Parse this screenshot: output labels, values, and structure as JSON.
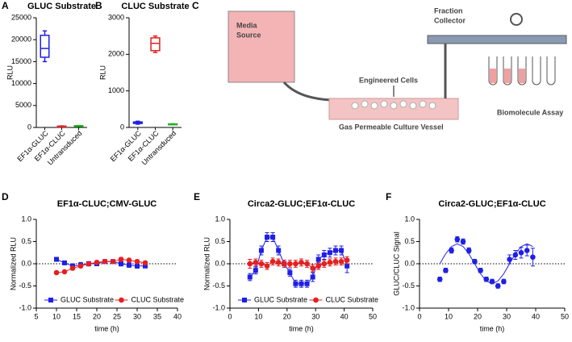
{
  "chart_data": [
    {
      "type": "box",
      "panel_label": "A",
      "title": "GLUC Substrate",
      "y_label": "RLU",
      "categories": [
        "EF1α-GLUC",
        "EF1α-CLUC",
        "Untransduced"
      ],
      "colors": [
        "#1f1fe6",
        "#e61f1f",
        "#1fb31f"
      ],
      "boxes": [
        {
          "min": 15000,
          "q1": 16000,
          "median": 18000,
          "q3": 21000,
          "max": 22000
        },
        {
          "min": 150,
          "q1": 200,
          "median": 250,
          "q3": 300,
          "max": 350
        },
        {
          "min": 250,
          "q1": 300,
          "median": 350,
          "q3": 400,
          "max": 450
        }
      ],
      "ylim": [
        0,
        25000
      ],
      "yticks": [
        0,
        5000,
        10000,
        15000,
        20000,
        25000
      ]
    },
    {
      "type": "box",
      "panel_label": "B",
      "title": "CLUC Substrate",
      "y_label": "RLU",
      "categories": [
        "EF1α-GLUC",
        "EF1α-CLUC",
        "Untransduced"
      ],
      "colors": [
        "#1f1fe6",
        "#e61f1f",
        "#1fb31f"
      ],
      "boxes": [
        {
          "min": 90,
          "q1": 110,
          "median": 130,
          "q3": 150,
          "max": 170
        },
        {
          "min": 2050,
          "q1": 2100,
          "median": 2300,
          "q3": 2450,
          "max": 2500
        },
        {
          "min": 80,
          "q1": 85,
          "median": 90,
          "q3": 95,
          "max": 100
        }
      ],
      "ylim": [
        0,
        3000
      ],
      "yticks": [
        0,
        1000,
        2000,
        3000
      ]
    },
    {
      "type": "line",
      "panel_label": "D",
      "title": "EF1α-CLUC;CMV-GLUC",
      "x_label": "time (h)",
      "y_label": "Normalized RLU",
      "xlim": [
        5,
        40
      ],
      "xticks": [
        5,
        10,
        15,
        20,
        25,
        30,
        35,
        40
      ],
      "ylim": [
        -1,
        1
      ],
      "yticks": [
        {
          "value": -1,
          "label": "-1.0"
        },
        -0.5,
        {
          "value": 0,
          "label": "0.0"
        },
        0.5,
        {
          "value": 1,
          "label": "1.0"
        }
      ],
      "reference_line": 0,
      "legend": "lower center",
      "series": [
        {
          "name": "GLUC Substrate",
          "color": "#1f1fe6",
          "marker": "square",
          "x": [
            10,
            12,
            14,
            16,
            18,
            20,
            22,
            24,
            26,
            28,
            30,
            32
          ],
          "values": [
            0.1,
            0.02,
            -0.05,
            -0.03,
            0.0,
            0.0,
            0.05,
            0.05,
            0.0,
            -0.03,
            -0.05,
            -0.05
          ],
          "errors": [
            0.03,
            0.03,
            0.05,
            0.06,
            0.05,
            0.04,
            0.04,
            0.04,
            0.05,
            0.05,
            0.05,
            0.04
          ]
        },
        {
          "name": "CLUC Substrate",
          "color": "#e61f1f",
          "marker": "circle",
          "x": [
            10,
            12,
            14,
            16,
            18,
            20,
            22,
            24,
            26,
            28,
            30,
            32
          ],
          "values": [
            -0.2,
            -0.18,
            -0.1,
            -0.05,
            0.0,
            0.03,
            0.05,
            0.05,
            0.1,
            0.08,
            0.05,
            0.02
          ],
          "errors": [
            0.03,
            0.03,
            0.04,
            0.04,
            0.04,
            0.04,
            0.04,
            0.04,
            0.04,
            0.04,
            0.04,
            0.04
          ]
        }
      ]
    },
    {
      "type": "line",
      "panel_label": "E",
      "title": "Circa2-GLUC;EF1α-CLUC",
      "x_label": "time (h)",
      "y_label": "Normalized RLU",
      "xlim": [
        0,
        50
      ],
      "xticks": [
        0,
        10,
        20,
        30,
        40,
        50
      ],
      "ylim": [
        -1,
        1
      ],
      "yticks": [
        {
          "value": -1,
          "label": "-1.0"
        },
        -0.5,
        {
          "value": 0,
          "label": "0.0"
        },
        0.5,
        {
          "value": 1,
          "label": "1.0"
        }
      ],
      "reference_line": 0,
      "legend": "lower center",
      "series": [
        {
          "name": "GLUC Substrate",
          "color": "#1f1fe6",
          "marker": "square",
          "x": [
            7,
            9,
            11,
            13,
            15,
            17,
            19,
            21,
            23,
            25,
            27,
            29,
            31,
            33,
            35,
            37,
            39,
            41
          ],
          "values": [
            -0.3,
            -0.15,
            0.3,
            0.6,
            0.6,
            0.3,
            0.0,
            -0.2,
            -0.45,
            -0.45,
            -0.45,
            -0.3,
            0.1,
            0.2,
            0.25,
            0.3,
            0.3,
            -0.05
          ],
          "errors": [
            0.08,
            0.08,
            0.1,
            0.1,
            0.1,
            0.1,
            0.08,
            0.08,
            0.08,
            0.08,
            0.08,
            0.1,
            0.1,
            0.1,
            0.1,
            0.1,
            0.1,
            0.15
          ]
        },
        {
          "name": "CLUC Substrate",
          "color": "#e61f1f",
          "marker": "circle",
          "x": [
            7,
            9,
            11,
            13,
            15,
            17,
            19,
            21,
            23,
            25,
            27,
            29,
            31,
            33,
            35,
            37,
            39,
            41
          ],
          "values": [
            0.0,
            0.03,
            0.0,
            -0.05,
            0.05,
            0.03,
            0.0,
            0.0,
            0.0,
            0.03,
            0.0,
            -0.1,
            -0.05,
            0.0,
            0.03,
            0.05,
            0.05,
            0.08
          ],
          "errors": [
            0.1,
            0.08,
            0.08,
            0.08,
            0.08,
            0.08,
            0.08,
            0.08,
            0.08,
            0.08,
            0.08,
            0.08,
            0.08,
            0.08,
            0.08,
            0.08,
            0.08,
            0.08
          ]
        }
      ]
    },
    {
      "type": "line",
      "panel_label": "F",
      "title": "Circa2-GLUC;EF1α-CLUC",
      "x_label": "time (h)",
      "y_label": "GLUC/CLUC Signal",
      "xlim": [
        0,
        50
      ],
      "xticks": [
        0,
        10,
        20,
        30,
        40,
        50
      ],
      "ylim": [
        -1,
        1
      ],
      "yticks": [
        {
          "value": -1,
          "label": "-1.0"
        },
        -0.5,
        {
          "value": 0,
          "label": "0.0"
        },
        0.5,
        {
          "value": 1,
          "label": "1.0"
        }
      ],
      "reference_line": 0,
      "series": [
        {
          "color": "#1f1fe6",
          "marker": "circle",
          "connect": false,
          "x": [
            7,
            9,
            11,
            13,
            15,
            17,
            19,
            21,
            23,
            25,
            27,
            29,
            31,
            33,
            35,
            37,
            39
          ],
          "values": [
            -0.35,
            -0.15,
            0.3,
            0.55,
            0.5,
            0.3,
            0.05,
            -0.15,
            -0.35,
            -0.4,
            -0.5,
            -0.4,
            0.1,
            0.2,
            0.25,
            0.3,
            0.15
          ],
          "errors": [
            0.05,
            0.05,
            0.06,
            0.06,
            0.06,
            0.06,
            0.05,
            0.05,
            0.05,
            0.05,
            0.05,
            0.05,
            0.1,
            0.1,
            0.12,
            0.12,
            0.2
          ]
        },
        {
          "color": "#1f1fe6",
          "marker": "none",
          "x": [
            7,
            9,
            11,
            13,
            15,
            17,
            19,
            21,
            23,
            25,
            27,
            29,
            31,
            33,
            35,
            37,
            39
          ],
          "values": [
            0,
            0.225,
            0.39,
            0.45,
            0.39,
            0.225,
            0,
            -0.225,
            -0.39,
            -0.45,
            -0.39,
            -0.225,
            0,
            0.225,
            0.39,
            0.45,
            0.39
          ]
        }
      ]
    }
  ],
  "diagram": {
    "panel_label": "C",
    "media_source": [
      "Media",
      "Source"
    ],
    "engineered_cells": "Engineered Cells",
    "fraction_collector": [
      "Fraction",
      "Collector"
    ],
    "vessel": "Gas Permeable Culture Vessel",
    "assay": "Biomolecule Assay"
  }
}
